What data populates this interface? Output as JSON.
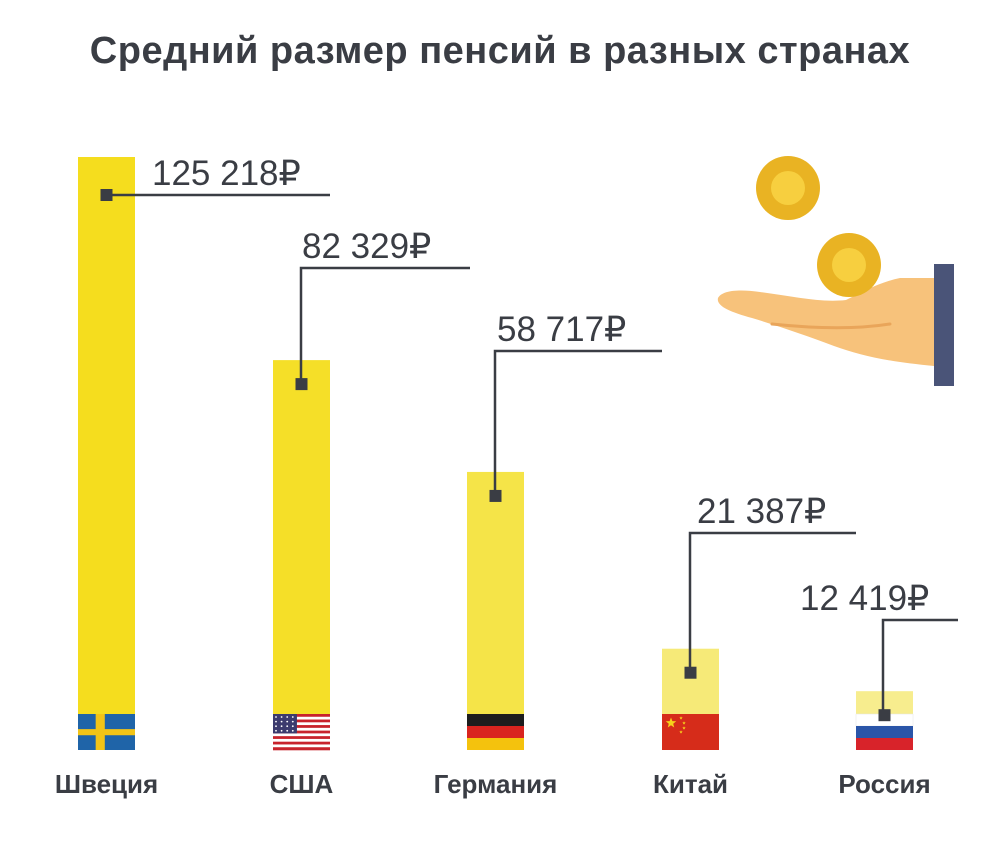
{
  "chart_data": {
    "type": "bar",
    "title": "Средний размер пенсий в разных странах",
    "categories": [
      "Швеция",
      "США",
      "Германия",
      "Китай",
      "Россия"
    ],
    "values": [
      125218,
      82329,
      58717,
      21387,
      12419
    ],
    "value_labels": [
      "125 218₽",
      "82 329₽",
      "58 717₽",
      "21 387₽",
      "12 419₽"
    ],
    "flags": [
      "sweden-flag",
      "usa-flag",
      "germany-flag",
      "china-flag",
      "russia-flag"
    ],
    "bar_colors": [
      "#f5dd1e",
      "#f5df28",
      "#f5e448",
      "#f6ea78",
      "#f7ed8e"
    ],
    "xlabel": "",
    "ylabel": "",
    "ylim": [
      0,
      125218
    ],
    "grid": false,
    "legend": "none"
  },
  "colors": {
    "title": "#3a3d44",
    "text": "#3a3d44",
    "leader_line": "#3a3d44",
    "coin": "#f2c12e",
    "hand": "#f7c27b",
    "sleeve": "#4a5478"
  },
  "decoration": {
    "illustration": "hand-with-coins-icon"
  }
}
